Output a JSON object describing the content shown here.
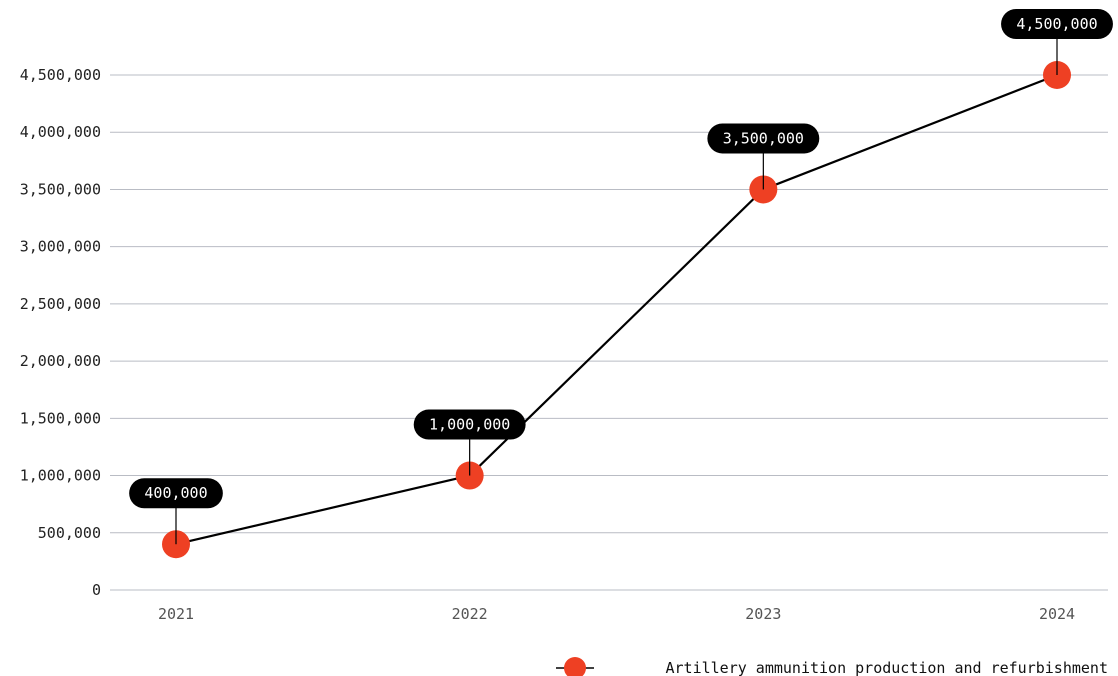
{
  "chart_data": {
    "type": "line",
    "title": "",
    "xlabel": "",
    "ylabel": "",
    "categories": [
      "2021",
      "2022",
      "2023",
      "2024"
    ],
    "series": [
      {
        "name": "Artillery ammunition production and refurbishment",
        "values": [
          400000,
          1000000,
          3500000,
          4500000
        ],
        "data_labels": [
          "400,000",
          "1,000,000",
          "3,500,000",
          "4,500,000"
        ]
      }
    ],
    "ylim": [
      0,
      4500000
    ],
    "yticks": [
      0,
      500000,
      1000000,
      1500000,
      2000000,
      2500000,
      3000000,
      3500000,
      4000000,
      4500000
    ],
    "ytick_labels": [
      "0",
      "500,000",
      "1,000,000",
      "1,500,000",
      "2,000,000",
      "2,500,000",
      "3,000,000",
      "3,500,000",
      "4,000,000",
      "4,500,000"
    ],
    "grid": true,
    "legend_position": "bottom-right",
    "colors": {
      "line": "#000000",
      "marker": "#ee4023",
      "grid": "#b9bcc4",
      "label_bg": "#000000",
      "label_text": "#ffffff"
    }
  }
}
